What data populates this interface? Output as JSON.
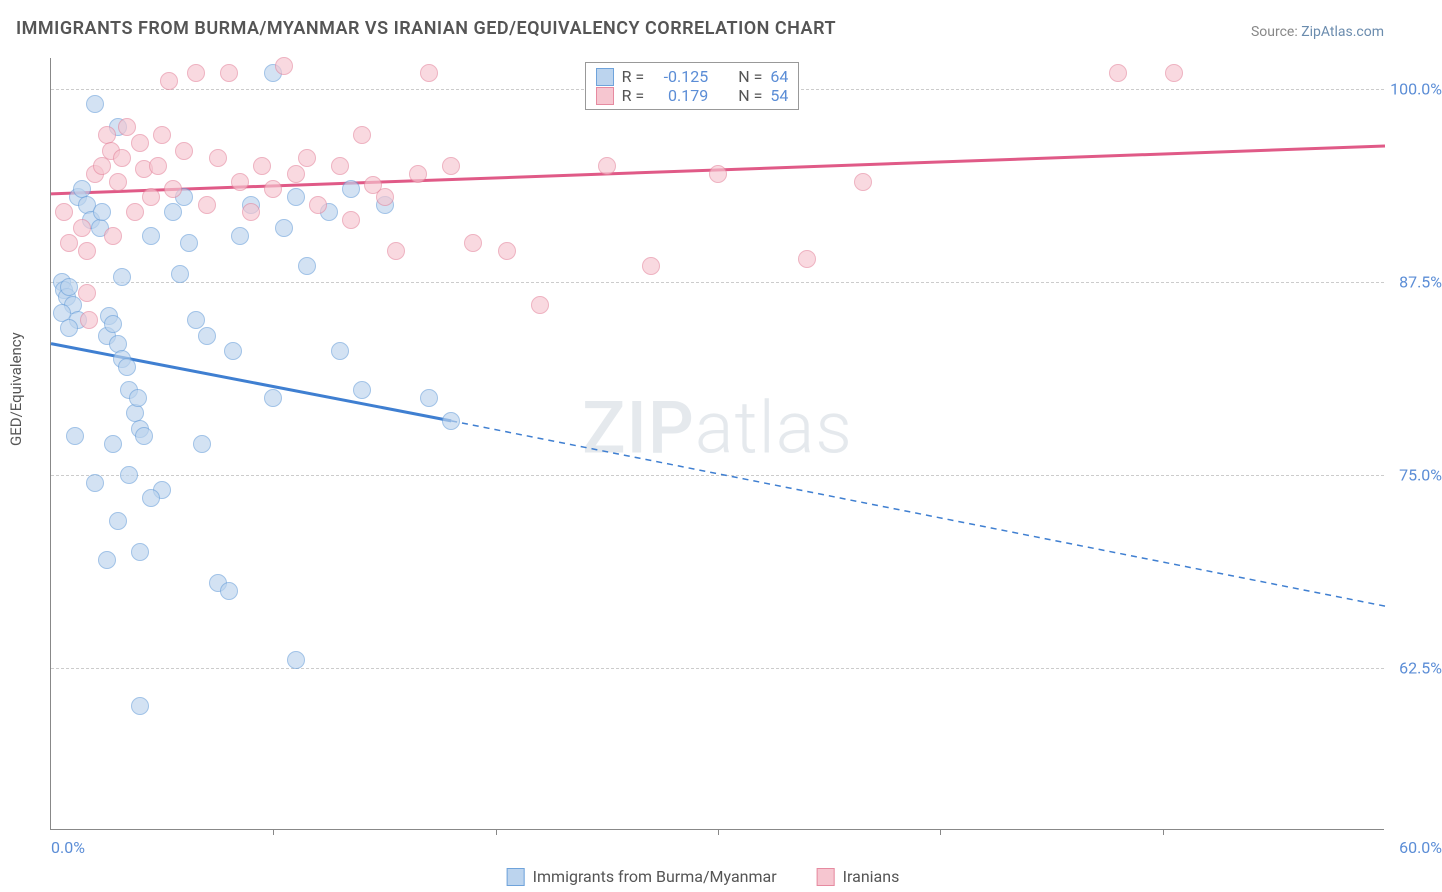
{
  "title": "IMMIGRANTS FROM BURMA/MYANMAR VS IRANIAN GED/EQUIVALENCY CORRELATION CHART",
  "source_prefix": "Source: ",
  "source_name": "ZipAtlas.com",
  "y_axis_label": "GED/Equivalency",
  "watermark": "ZIPatlas",
  "chart": {
    "type": "scatter",
    "xlim": [
      0,
      60
    ],
    "ylim": [
      52,
      102
    ],
    "x_ticks": [
      0,
      60
    ],
    "x_tick_labels": [
      "0.0%",
      "60.0%"
    ],
    "x_minor_tick_positions": [
      10,
      20,
      30,
      40,
      50
    ],
    "y_ticks": [
      62.5,
      75.0,
      87.5,
      100.0
    ],
    "y_tick_labels": [
      "62.5%",
      "75.0%",
      "87.5%",
      "100.0%"
    ],
    "background_color": "#ffffff",
    "grid_color": "#cccccc",
    "series": [
      {
        "name": "Immigrants from Burma/Myanmar",
        "marker": "circle",
        "marker_size": 18,
        "fill": "#bcd4ee",
        "stroke": "#6fa3db",
        "fill_opacity": 0.65,
        "R": "-0.125",
        "N": "64",
        "trend": {
          "color": "#3f7fd1",
          "width": 3,
          "x1": 0,
          "y1": 83.5,
          "x2": 18,
          "y2": 78.5,
          "dash_x2": 60,
          "dash_y2": 66.5
        },
        "points": [
          [
            0.5,
            87.5
          ],
          [
            0.6,
            87.0
          ],
          [
            0.7,
            86.5
          ],
          [
            0.8,
            87.2
          ],
          [
            1.0,
            86.0
          ],
          [
            1.2,
            85.0
          ],
          [
            0.5,
            85.5
          ],
          [
            0.8,
            84.5
          ],
          [
            1.2,
            93.0
          ],
          [
            1.4,
            93.5
          ],
          [
            1.6,
            92.5
          ],
          [
            1.8,
            91.5
          ],
          [
            2.0,
            99.0
          ],
          [
            2.2,
            91.0
          ],
          [
            2.3,
            92.0
          ],
          [
            2.5,
            84.0
          ],
          [
            2.6,
            85.3
          ],
          [
            2.8,
            84.8
          ],
          [
            3.0,
            83.5
          ],
          [
            3.2,
            82.5
          ],
          [
            3.4,
            82.0
          ],
          [
            3.5,
            80.5
          ],
          [
            1.1,
            77.5
          ],
          [
            3.8,
            79.0
          ],
          [
            3.9,
            80.0
          ],
          [
            2.8,
            77.0
          ],
          [
            4.0,
            78.0
          ],
          [
            4.2,
            77.5
          ],
          [
            2.0,
            74.5
          ],
          [
            3.5,
            75.0
          ],
          [
            5.0,
            74.0
          ],
          [
            4.5,
            73.5
          ],
          [
            3.0,
            72.0
          ],
          [
            2.5,
            69.5
          ],
          [
            4.0,
            70.0
          ],
          [
            5.5,
            92.0
          ],
          [
            6.0,
            93.0
          ],
          [
            6.2,
            90.0
          ],
          [
            6.5,
            85.0
          ],
          [
            7.0,
            84.0
          ],
          [
            7.5,
            68.0
          ],
          [
            8.0,
            67.5
          ],
          [
            8.5,
            90.5
          ],
          [
            9.0,
            92.5
          ],
          [
            8.2,
            83.0
          ],
          [
            10.0,
            80.0
          ],
          [
            10.5,
            91.0
          ],
          [
            11.0,
            93.0
          ],
          [
            11.5,
            88.5
          ],
          [
            12.5,
            92.0
          ],
          [
            13.0,
            83.0
          ],
          [
            13.5,
            93.5
          ],
          [
            14.0,
            80.5
          ],
          [
            15.0,
            92.5
          ],
          [
            10.0,
            101.0
          ],
          [
            17.0,
            80.0
          ],
          [
            18.0,
            78.5
          ],
          [
            4.0,
            60.0
          ],
          [
            11.0,
            63.0
          ],
          [
            3.0,
            97.5
          ],
          [
            4.5,
            90.5
          ],
          [
            5.8,
            88.0
          ],
          [
            6.8,
            77.0
          ],
          [
            3.2,
            87.8
          ]
        ]
      },
      {
        "name": "Iranians",
        "marker": "circle",
        "marker_size": 18,
        "fill": "#f6c6d0",
        "stroke": "#e68aa0",
        "fill_opacity": 0.65,
        "R": "0.179",
        "N": "54",
        "trend": {
          "color": "#e05a87",
          "width": 3,
          "x1": 0,
          "y1": 93.2,
          "x2": 60,
          "y2": 96.3,
          "dash_x2": null,
          "dash_y2": null
        },
        "points": [
          [
            0.6,
            92.0
          ],
          [
            0.8,
            90.0
          ],
          [
            1.4,
            91.0
          ],
          [
            1.6,
            89.5
          ],
          [
            1.6,
            86.8
          ],
          [
            1.7,
            85.0
          ],
          [
            2.0,
            94.5
          ],
          [
            2.3,
            95.0
          ],
          [
            2.5,
            97.0
          ],
          [
            2.7,
            96.0
          ],
          [
            2.8,
            90.5
          ],
          [
            3.0,
            94.0
          ],
          [
            3.2,
            95.5
          ],
          [
            3.4,
            97.5
          ],
          [
            3.8,
            92.0
          ],
          [
            4.0,
            96.5
          ],
          [
            4.2,
            94.8
          ],
          [
            4.5,
            93.0
          ],
          [
            4.8,
            95.0
          ],
          [
            5.0,
            97.0
          ],
          [
            5.3,
            100.5
          ],
          [
            5.5,
            93.5
          ],
          [
            6.0,
            96.0
          ],
          [
            6.5,
            101.0
          ],
          [
            7.0,
            92.5
          ],
          [
            7.5,
            95.5
          ],
          [
            8.0,
            101.0
          ],
          [
            8.5,
            94.0
          ],
          [
            9.0,
            92.0
          ],
          [
            9.5,
            95.0
          ],
          [
            10.0,
            93.5
          ],
          [
            10.5,
            101.5
          ],
          [
            11.0,
            94.5
          ],
          [
            11.5,
            95.5
          ],
          [
            12.0,
            92.5
          ],
          [
            13.0,
            95.0
          ],
          [
            13.5,
            91.5
          ],
          [
            14.0,
            97.0
          ],
          [
            15.0,
            93.0
          ],
          [
            15.5,
            89.5
          ],
          [
            16.5,
            94.5
          ],
          [
            17.0,
            101.0
          ],
          [
            18.0,
            95.0
          ],
          [
            19.0,
            90.0
          ],
          [
            20.5,
            89.5
          ],
          [
            22.0,
            86.0
          ],
          [
            25.0,
            95.0
          ],
          [
            27.0,
            88.5
          ],
          [
            30.0,
            94.5
          ],
          [
            34.0,
            89.0
          ],
          [
            36.5,
            94.0
          ],
          [
            48.0,
            101.0
          ],
          [
            50.5,
            101.0
          ],
          [
            14.5,
            93.8
          ]
        ]
      }
    ]
  },
  "legend_box": {
    "R_label": "R =",
    "N_label": "N ="
  }
}
